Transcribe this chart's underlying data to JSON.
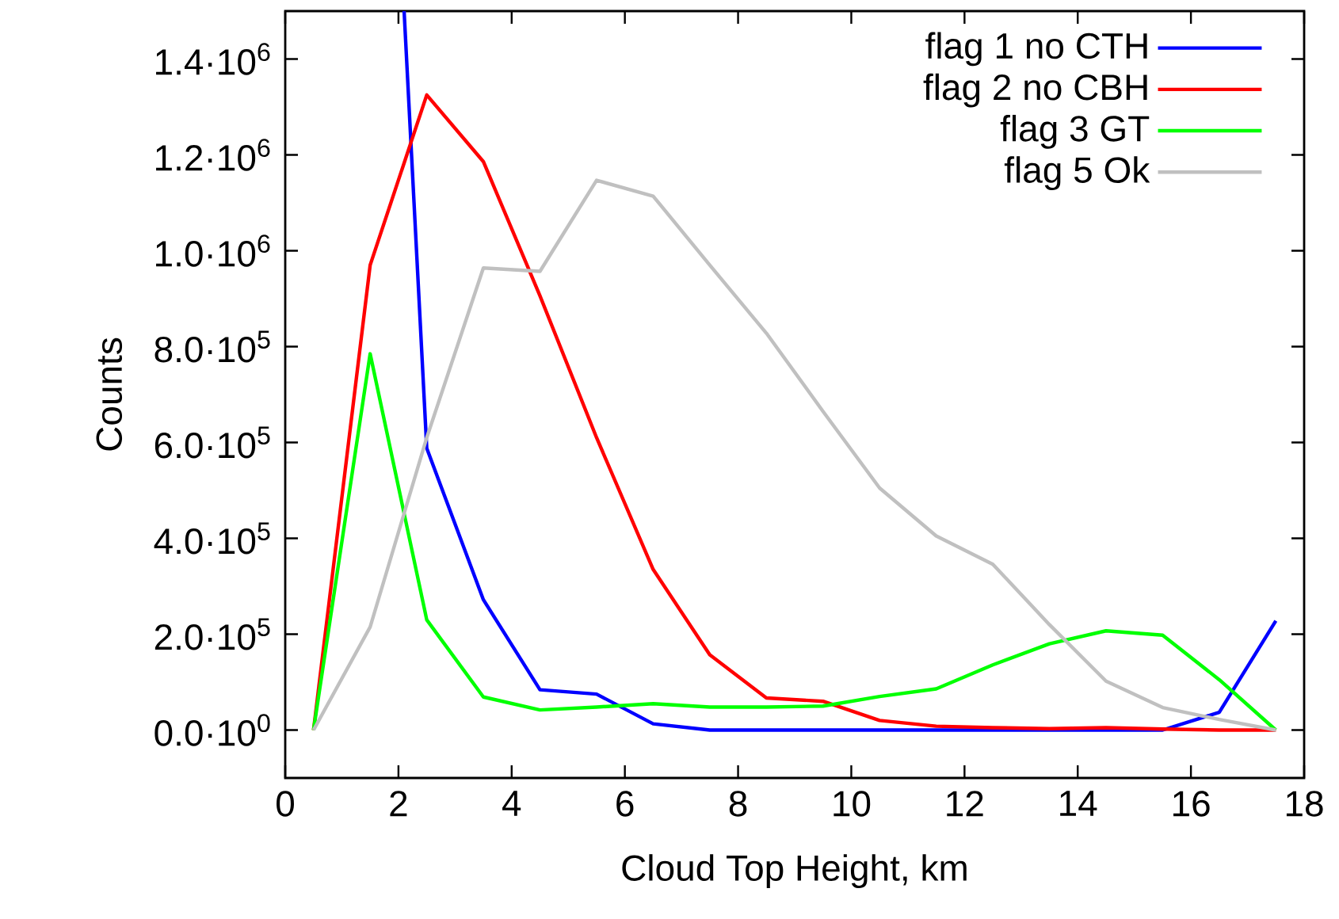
{
  "chart_data": {
    "type": "line",
    "xlabel": "Cloud Top Height, km",
    "ylabel": "Counts",
    "x": [
      0.5,
      1.5,
      2.5,
      3.5,
      4.5,
      5.5,
      6.5,
      7.5,
      8.5,
      9.5,
      10.5,
      11.5,
      12.5,
      13.5,
      14.5,
      15.5,
      16.5,
      17.5
    ],
    "series": [
      {
        "name": "flag 1 no CTH",
        "color": "#0000ff",
        "x": [
          2.1,
          2.5,
          3.5,
          4.5,
          5.5,
          6.5,
          7.5,
          8.5,
          9.5,
          10.5,
          11.5,
          12.5,
          13.5,
          14.5,
          15.5,
          16.5,
          17.5
        ],
        "values": [
          1500000,
          588000,
          272000,
          84000,
          75000,
          13000,
          0,
          0,
          0,
          0,
          0,
          0,
          0,
          0,
          0,
          37000,
          228000
        ]
      },
      {
        "name": "flag 2 no CBH",
        "color": "#ff0000",
        "values": [
          0,
          970000,
          1325000,
          1186000,
          906000,
          610000,
          335000,
          157000,
          67000,
          60000,
          20000,
          8000,
          5000,
          3000,
          5000,
          2000,
          0,
          0
        ]
      },
      {
        "name": "flag 3 GT",
        "color": "#00ff00",
        "values": [
          0,
          785000,
          230000,
          69000,
          42000,
          48000,
          55000,
          48000,
          48000,
          50000,
          70000,
          86000,
          136000,
          180000,
          207000,
          198000,
          105000,
          0
        ]
      },
      {
        "name": "flag 5 Ok",
        "color": "#c0c0c0",
        "values": [
          0,
          215000,
          610000,
          964000,
          957000,
          1147000,
          1114000,
          970000,
          828000,
          665000,
          505000,
          405000,
          346000,
          220000,
          102000,
          47000,
          22000,
          0
        ]
      }
    ],
    "xlim": [
      0,
      18
    ],
    "ylim": [
      -100000,
      1500000
    ],
    "xticks": [
      0,
      2,
      4,
      6,
      8,
      10,
      12,
      14,
      16,
      18
    ],
    "yticks": [
      {
        "value": 0,
        "label": "0.0·10$^{0}$"
      },
      {
        "value": 200000,
        "label": "2.0·10$^{5}$"
      },
      {
        "value": 400000,
        "label": "4.0·10$^{5}$"
      },
      {
        "value": 600000,
        "label": "6.0·10$^{5}$"
      },
      {
        "value": 800000,
        "label": "8.0·10$^{5}$"
      },
      {
        "value": 1000000,
        "label": "1.0·10$^{6}$"
      },
      {
        "value": 1200000,
        "label": "1.2·10$^{6}$"
      },
      {
        "value": 1400000,
        "label": "1.4·10$^{6}$"
      }
    ],
    "grid": false,
    "legend": "top right",
    "marker": "none",
    "line_style": "solid"
  }
}
